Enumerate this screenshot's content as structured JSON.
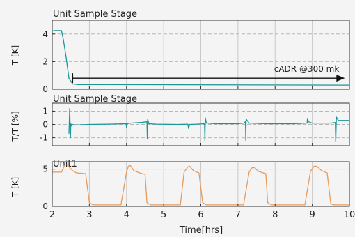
{
  "chart_data": [
    {
      "type": "line",
      "title": "Unit Sample Stage",
      "ylabel": "T [K]",
      "xlim": [
        2,
        10
      ],
      "ylim": [
        0,
        5
      ],
      "yticks": [
        0,
        2,
        4
      ],
      "grid": true,
      "color": "#1a9696",
      "series": [
        {
          "x": [
            2.0,
            2.05,
            2.25,
            2.3,
            2.38,
            2.45,
            2.55,
            2.7,
            10.0
          ],
          "values": [
            4.2,
            4.25,
            4.25,
            3.6,
            2.2,
            0.8,
            0.38,
            0.34,
            0.3
          ]
        }
      ],
      "annotation": {
        "text": "cADR @300 mk",
        "arrow_from": [
          2.55,
          0.8
        ],
        "arrow_to": [
          9.8,
          0.8
        ]
      }
    },
    {
      "type": "line",
      "title": "Unit Sample Stage",
      "ylabel": "T/T [%]",
      "xlim": [
        2,
        10
      ],
      "ylim": [
        -1.6,
        1.6
      ],
      "yticks": [
        -1,
        0,
        1
      ],
      "grid": true,
      "color": "#1a9696",
      "series": [
        {
          "x": [
            2.45,
            2.47,
            2.49,
            2.5,
            2.52,
            2.55,
            2.6,
            3.0,
            3.5,
            3.99,
            4.0,
            4.02,
            4.1,
            4.4,
            4.55,
            4.56,
            4.57,
            4.6,
            4.8,
            5.4,
            5.65,
            5.67,
            5.7,
            5.9,
            6.1,
            6.11,
            6.12,
            6.15,
            6.4,
            7.0,
            7.15,
            7.2,
            7.21,
            7.22,
            7.3,
            7.8,
            8.5,
            8.86,
            8.87,
            8.9,
            9.0,
            9.2,
            9.5,
            9.62,
            9.63,
            9.65,
            9.7,
            10.0
          ],
          "values": [
            -0.7,
            1.2,
            -1.0,
            0.05,
            -0.1,
            0.0,
            -0.05,
            0.0,
            0.02,
            0.05,
            -0.25,
            0.05,
            0.1,
            0.15,
            0.2,
            -1.1,
            0.4,
            0.05,
            0.02,
            0.0,
            0.02,
            -0.3,
            0.0,
            0.02,
            0.05,
            -1.2,
            0.5,
            0.1,
            0.05,
            0.05,
            0.1,
            0.2,
            -1.2,
            0.4,
            0.1,
            0.05,
            0.05,
            0.1,
            0.45,
            0.2,
            0.1,
            0.1,
            0.1,
            0.15,
            -1.3,
            0.55,
            0.3,
            0.3
          ]
        }
      ]
    },
    {
      "type": "line",
      "title": "Unit1",
      "ylabel": "T [K]",
      "xlabel": "Time[hrs]",
      "xlim": [
        2,
        10
      ],
      "ylim": [
        0,
        6
      ],
      "yticks": [
        0,
        5
      ],
      "xticks": [
        2,
        3,
        4,
        5,
        6,
        7,
        8,
        9,
        10
      ],
      "grid": true,
      "color": "#e89a5a",
      "series": [
        {
          "x": [
            2.0,
            2.25,
            2.33,
            2.4,
            2.55,
            2.65,
            2.9,
            3.0,
            3.1,
            3.3,
            3.85,
            4.0,
            4.05,
            4.1,
            4.2,
            4.35,
            4.5,
            4.55,
            4.65,
            5.45,
            5.55,
            5.65,
            5.7,
            5.8,
            5.95,
            6.05,
            6.15,
            7.15,
            7.3,
            7.38,
            7.45,
            7.55,
            7.75,
            7.8,
            7.9,
            8.8,
            8.95,
            9.05,
            9.12,
            9.25,
            9.4,
            9.5,
            9.6,
            10.0
          ],
          "values": [
            4.6,
            4.6,
            5.5,
            5.6,
            4.8,
            4.5,
            4.4,
            0.5,
            0.2,
            0.2,
            0.2,
            4.6,
            5.4,
            5.5,
            4.8,
            4.5,
            4.3,
            0.5,
            0.2,
            0.2,
            4.6,
            5.3,
            5.4,
            4.8,
            4.5,
            0.5,
            0.2,
            0.2,
            4.6,
            5.2,
            5.2,
            4.7,
            4.4,
            0.5,
            0.2,
            0.2,
            4.7,
            5.4,
            5.4,
            4.8,
            4.5,
            0.3,
            0.2,
            0.2
          ]
        }
      ]
    }
  ]
}
